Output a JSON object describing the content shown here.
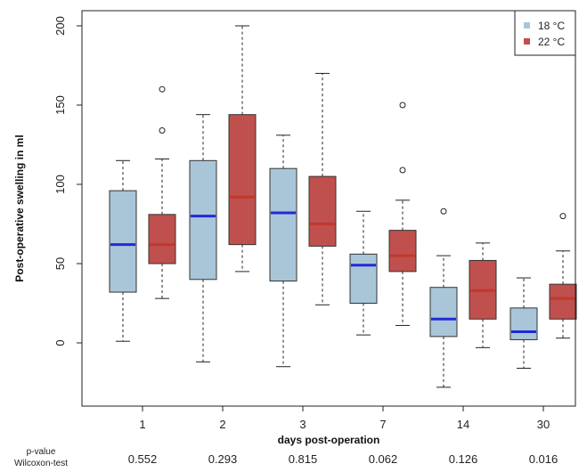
{
  "chart_data": {
    "type": "boxplot",
    "xlabel": "days post-operation",
    "ylabel": "Post-operative swelling in ml",
    "ylim": [
      -38,
      210
    ],
    "yticks": [
      0,
      50,
      100,
      150,
      200
    ],
    "categories": [
      "1",
      "2",
      "3",
      "7",
      "14",
      "30"
    ],
    "legend_position": "top-right",
    "grid": false,
    "series": [
      {
        "name": "18 °C",
        "color": "#a9c6d9",
        "median_color": "#1f2bd6",
        "boxes": [
          {
            "whisker_low": 1,
            "q1": 32,
            "median": 62,
            "q3": 96,
            "whisker_high": 115,
            "outliers": []
          },
          {
            "whisker_low": -12,
            "q1": 40,
            "median": 80,
            "q3": 115,
            "whisker_high": 144,
            "outliers": []
          },
          {
            "whisker_low": -15,
            "q1": 39,
            "median": 82,
            "q3": 110,
            "whisker_high": 131,
            "outliers": []
          },
          {
            "whisker_low": 5,
            "q1": 25,
            "median": 49,
            "q3": 56,
            "whisker_high": 83,
            "outliers": []
          },
          {
            "whisker_low": -28,
            "q1": 4,
            "median": 15,
            "q3": 35,
            "whisker_high": 55,
            "outliers": [
              83
            ]
          },
          {
            "whisker_low": -16,
            "q1": 2,
            "median": 7,
            "q3": 22,
            "whisker_high": 41,
            "outliers": []
          }
        ]
      },
      {
        "name": "22 °C",
        "color": "#c0504d",
        "median_color": "#c0392b",
        "boxes": [
          {
            "whisker_low": 28,
            "q1": 50,
            "median": 62,
            "q3": 81,
            "whisker_high": 116,
            "outliers": [
              134,
              160
            ]
          },
          {
            "whisker_low": 45,
            "q1": 62,
            "median": 92,
            "q3": 144,
            "whisker_high": 200,
            "outliers": []
          },
          {
            "whisker_low": 24,
            "q1": 61,
            "median": 75,
            "q3": 105,
            "whisker_high": 170,
            "outliers": []
          },
          {
            "whisker_low": 11,
            "q1": 45,
            "median": 55,
            "q3": 71,
            "whisker_high": 90,
            "outliers": [
              109,
              150
            ]
          },
          {
            "whisker_low": -3,
            "q1": 15,
            "median": 33,
            "q3": 52,
            "whisker_high": 63,
            "outliers": []
          },
          {
            "whisker_low": 3,
            "q1": 15,
            "median": 28,
            "q3": 37,
            "whisker_high": 58,
            "outliers": [
              80
            ]
          }
        ]
      }
    ],
    "pvalue_label_line1": "p-value",
    "pvalue_label_line2": "Wilcoxon-test",
    "pvalues": [
      "0.552",
      "0.293",
      "0.815",
      "0.062",
      "0.126",
      "0.016"
    ]
  }
}
